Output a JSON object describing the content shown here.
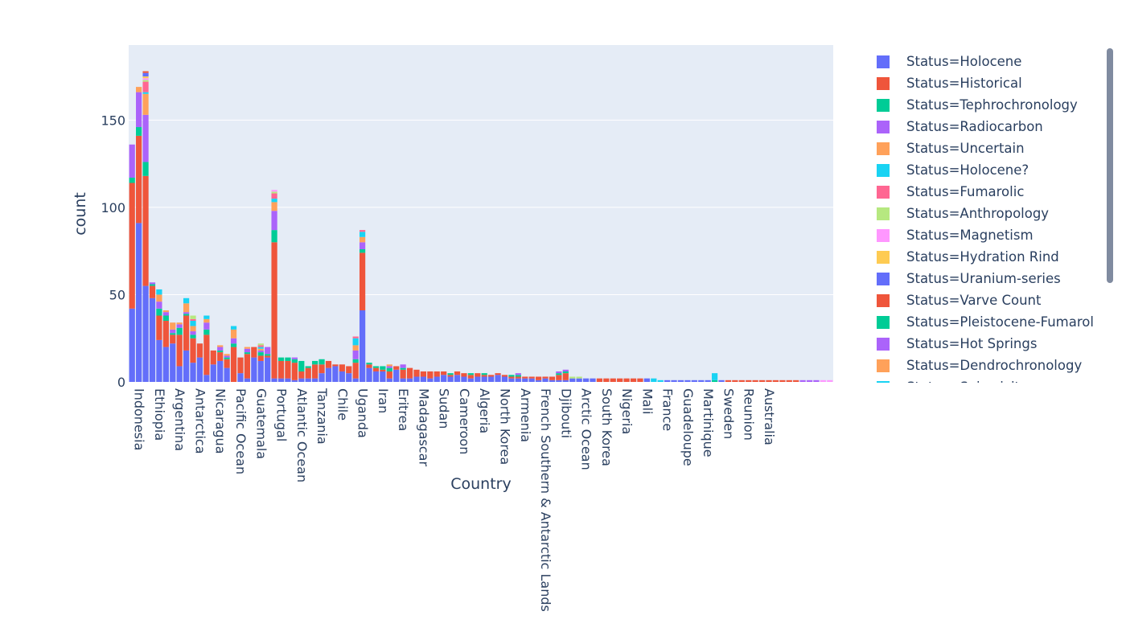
{
  "chart_data": {
    "type": "bar",
    "barmode": "stack",
    "xlabel": "Country",
    "ylabel": "count",
    "ylim": [
      0,
      193
    ],
    "yticks": [
      0,
      50,
      100,
      150
    ],
    "grid": true,
    "legend_position": "right",
    "tick_labels": [
      "Indonesia",
      "Ethiopia",
      "Argentina",
      "Antarctica",
      "Nicaragua",
      "Pacific Ocean",
      "Guatemala",
      "Portugal",
      "Atlantic Ocean",
      "Tanzania",
      "Chile",
      "Uganda",
      "Iran",
      "Eritrea",
      "Madagascar",
      "Sudan",
      "Cameroon",
      "Algeria",
      "North Korea",
      "Armenia",
      "French Southern & Antarctic Lands",
      "Djibouti",
      "Arctic Ocean",
      "South Korea",
      "Nigeria",
      "Mali",
      "France",
      "Guadeloupe",
      "Martinique",
      "Sweden",
      "Reunion",
      "Australia"
    ],
    "legend": [
      {
        "name": "Status=Holocene",
        "color": "#636efa"
      },
      {
        "name": "Status=Historical",
        "color": "#ef553b"
      },
      {
        "name": "Status=Tephrochronology",
        "color": "#00cc96"
      },
      {
        "name": "Status=Radiocarbon",
        "color": "#ab63fa"
      },
      {
        "name": "Status=Uncertain",
        "color": "#ffa15a"
      },
      {
        "name": "Status=Holocene?",
        "color": "#19d3f3"
      },
      {
        "name": "Status=Fumarolic",
        "color": "#ff6692"
      },
      {
        "name": "Status=Anthropology",
        "color": "#b6e880"
      },
      {
        "name": "Status=Magnetism",
        "color": "#ff97ff"
      },
      {
        "name": "Status=Hydration Rind",
        "color": "#fecb52"
      },
      {
        "name": "Status=Uranium-series",
        "color": "#636efa"
      },
      {
        "name": "Status=Varve Count",
        "color": "#ef553b"
      },
      {
        "name": "Status=Pleistocene-Fumarol",
        "color": "#00cc96"
      },
      {
        "name": "Status=Hot Springs",
        "color": "#ab63fa"
      },
      {
        "name": "Status=Dendrochronology",
        "color": "#ffa15a"
      },
      {
        "name": "Status=Seismicity",
        "color": "#19d3f3"
      }
    ],
    "bars": [
      [
        42,
        72,
        3,
        19
      ],
      [
        91,
        50,
        5,
        20,
        3
      ],
      [
        55,
        63,
        8,
        27,
        12,
        1,
        6,
        1,
        1,
        1,
        2,
        1
      ],
      [
        48,
        7,
        1,
        1
      ],
      [
        24,
        14,
        4,
        4,
        4,
        3
      ],
      [
        20,
        15,
        3,
        2,
        1
      ],
      [
        22,
        5,
        1,
        2,
        4
      ],
      [
        9,
        18,
        4,
        2,
        1
      ],
      [
        18,
        20,
        1,
        1,
        5,
        3
      ],
      [
        11,
        14,
        2,
        2,
        3,
        3,
        1,
        2
      ],
      [
        14,
        8
      ],
      [
        4,
        23,
        3,
        4,
        2,
        2
      ],
      [
        10,
        8
      ],
      [
        12,
        5,
        1,
        2,
        1
      ],
      [
        8,
        5,
        1,
        1,
        1
      ],
      [
        0,
        20,
        2,
        3,
        5,
        2
      ],
      [
        5,
        9
      ],
      [
        2,
        14,
        1,
        2,
        1
      ],
      [
        14,
        6
      ],
      [
        12,
        3,
        2,
        1,
        1,
        1,
        1,
        1
      ],
      [
        14,
        1,
        1,
        4
      ],
      [
        2,
        78,
        7,
        11,
        5,
        2,
        3,
        1,
        1
      ],
      [
        2,
        10,
        2
      ],
      [
        2,
        10,
        2
      ],
      [
        1,
        10,
        2,
        1
      ],
      [
        2,
        4,
        6
      ],
      [
        2,
        6,
        1
      ],
      [
        2,
        8,
        2
      ],
      [
        5,
        5,
        3
      ],
      [
        8,
        4
      ],
      [
        9,
        1
      ],
      [
        6,
        4
      ],
      [
        5,
        4
      ],
      [
        2,
        9,
        2,
        5,
        3,
        4,
        1
      ],
      [
        41,
        33,
        2,
        4,
        3,
        3,
        1
      ],
      [
        8,
        2,
        1
      ],
      [
        6,
        2,
        1
      ],
      [
        6,
        1,
        2
      ],
      [
        2,
        4,
        2,
        1,
        1
      ],
      [
        7,
        2
      ],
      [
        2,
        5,
        1,
        2
      ],
      [
        2,
        6
      ],
      [
        3,
        4
      ],
      [
        3,
        3
      ],
      [
        2,
        4
      ],
      [
        3,
        3
      ],
      [
        4,
        2
      ],
      [
        3,
        1,
        1
      ],
      [
        4,
        2
      ],
      [
        3,
        2
      ],
      [
        2,
        2,
        1
      ],
      [
        3,
        2
      ],
      [
        3,
        1,
        1
      ],
      [
        3,
        1
      ],
      [
        4,
        1
      ],
      [
        3,
        1
      ],
      [
        2,
        1,
        1
      ],
      [
        2,
        1,
        1,
        1
      ],
      [
        2,
        1
      ],
      [
        2,
        1
      ],
      [
        1,
        2
      ],
      [
        2,
        1
      ],
      [
        1,
        2
      ],
      [
        1,
        3,
        1,
        1
      ],
      [
        1,
        4,
        1,
        1
      ],
      [
        2,
        0,
        0,
        0,
        0,
        0,
        0,
        1
      ],
      [
        2,
        0,
        0,
        0,
        0,
        0,
        0,
        1
      ],
      [
        2
      ],
      [
        2
      ],
      [
        0,
        2
      ],
      [
        0,
        2
      ],
      [
        0,
        2
      ],
      [
        0,
        2
      ],
      [
        0,
        2
      ],
      [
        0,
        2
      ],
      [
        0,
        2
      ],
      [
        2
      ],
      [
        0,
        0,
        0,
        0,
        0,
        2
      ],
      [
        0,
        0,
        0,
        0,
        0,
        1
      ],
      [
        1
      ],
      [
        1
      ],
      [
        1
      ],
      [
        1
      ],
      [
        1
      ],
      [
        1
      ],
      [
        1
      ],
      [
        0,
        0,
        1,
        0,
        0,
        4
      ],
      [
        1
      ],
      [
        0,
        1
      ],
      [
        0,
        1
      ],
      [
        0,
        1
      ],
      [
        0,
        1
      ],
      [
        0,
        1
      ],
      [
        0,
        1
      ],
      [
        0,
        1
      ],
      [
        0,
        1
      ],
      [
        0,
        1
      ],
      [
        0,
        1
      ],
      [
        0,
        1
      ],
      [
        0,
        0,
        0,
        1
      ],
      [
        0,
        0,
        0,
        1
      ],
      [
        0,
        0,
        0,
        1
      ],
      [
        0,
        0,
        0,
        0,
        0,
        0,
        0,
        0,
        1
      ],
      [
        0,
        0,
        0,
        0,
        0,
        0,
        0,
        0,
        1
      ]
    ]
  }
}
